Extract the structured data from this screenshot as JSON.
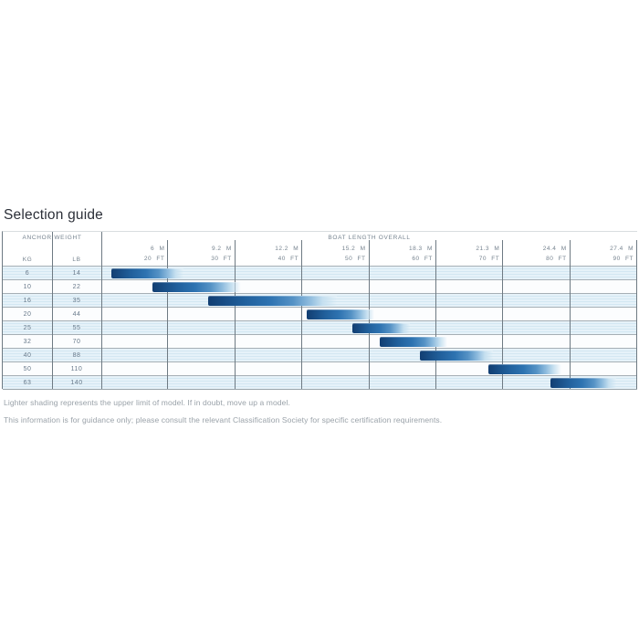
{
  "page": {
    "title": "Selection guide",
    "notes": [
      "Lighter shading represents the upper limit of model. If in doubt, move up a model.",
      "This information is for guidance only; please consult the relevant Classification Society for specific certification requirements."
    ]
  },
  "table": {
    "anchor_weight_header": "ANCHOR WEIGHT",
    "boat_length_header": "BOAT LENGTH OVERALL",
    "kg_header": "KG",
    "lb_header": "LB"
  },
  "colors": {
    "bar_dark": "#123e72",
    "bar_mid": "#2e73b1",
    "bar_fade": "#c6e0f0",
    "shaded_row": "#dcecf5",
    "gridline": "#6e7a83",
    "label_text": "#76838f"
  },
  "chart_data": {
    "type": "bar",
    "subtype": "horizontal-range-bars",
    "title": "Selection guide",
    "xlabel": "BOAT LENGTH OVERALL",
    "ylabel": "ANCHOR WEIGHT",
    "legend_note": "Lighter shading represents the upper limit of model",
    "grid": true,
    "columns": [
      {
        "m": "6 M",
        "ft": "20 FT",
        "pct": 12.5
      },
      {
        "m": "9.2 M",
        "ft": "30 FT",
        "pct": 25
      },
      {
        "m": "12.2 M",
        "ft": "40 FT",
        "pct": 37.5
      },
      {
        "m": "15.2 M",
        "ft": "50 FT",
        "pct": 50
      },
      {
        "m": "18.3 M",
        "ft": "60 FT",
        "pct": 62.5
      },
      {
        "m": "21.3 M",
        "ft": "70 FT",
        "pct": 75
      },
      {
        "m": "24.4 M",
        "ft": "80 FT",
        "pct": 87.5
      },
      {
        "m": "27.4 M",
        "ft": "90 FT",
        "pct": 100
      }
    ],
    "rows": [
      {
        "kg": "6",
        "lb": "14",
        "bar_start_pct": 1.9,
        "bar_end_pct": 15.3,
        "approx_boat_ft_start": 11,
        "approx_boat_ft_end": 22
      },
      {
        "kg": "10",
        "lb": "22",
        "bar_start_pct": 9.5,
        "bar_end_pct": 26.0,
        "approx_boat_ft_start": 18,
        "approx_boat_ft_end": 31
      },
      {
        "kg": "16",
        "lb": "35",
        "bar_start_pct": 19.9,
        "bar_end_pct": 43.9,
        "approx_boat_ft_start": 26,
        "approx_boat_ft_end": 45
      },
      {
        "kg": "20",
        "lb": "44",
        "bar_start_pct": 38.4,
        "bar_end_pct": 51.0,
        "approx_boat_ft_start": 41,
        "approx_boat_ft_end": 51
      },
      {
        "kg": "25",
        "lb": "55",
        "bar_start_pct": 46.9,
        "bar_end_pct": 57.5,
        "approx_boat_ft_start": 48,
        "approx_boat_ft_end": 56
      },
      {
        "kg": "32",
        "lb": "70",
        "bar_start_pct": 52.0,
        "bar_end_pct": 64.6,
        "approx_boat_ft_start": 52,
        "approx_boat_ft_end": 62
      },
      {
        "kg": "40",
        "lb": "88",
        "bar_start_pct": 59.4,
        "bar_end_pct": 73.1,
        "approx_boat_ft_start": 58,
        "approx_boat_ft_end": 69
      },
      {
        "kg": "50",
        "lb": "110",
        "bar_start_pct": 72.3,
        "bar_end_pct": 85.9,
        "approx_boat_ft_start": 68,
        "approx_boat_ft_end": 79
      },
      {
        "kg": "63",
        "lb": "140",
        "bar_start_pct": 83.8,
        "bar_end_pct": 96.1,
        "approx_boat_ft_start": 77,
        "approx_boat_ft_end": 87
      }
    ]
  }
}
